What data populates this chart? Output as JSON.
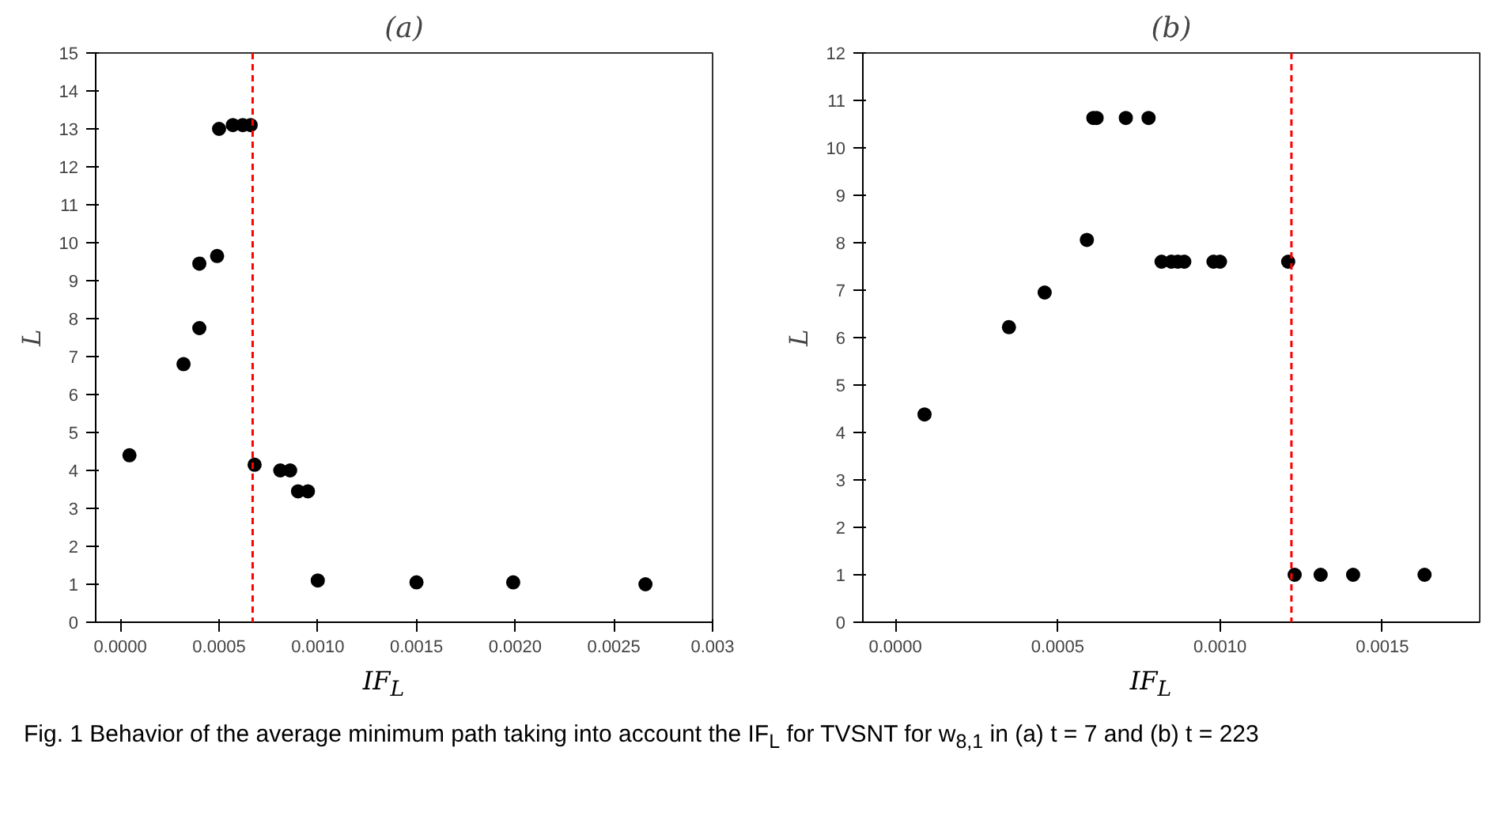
{
  "chart_data": [
    {
      "type": "scatter",
      "title": "(a)",
      "xlabel": "IF$_{L}$",
      "ylabel": "L",
      "marker": "circle",
      "grid": false,
      "x": [
        4.6e-05,
        0.00032,
        0.0004,
        0.0004,
        0.00049,
        0.0005,
        0.00057,
        0.00062,
        0.00066,
        0.00068,
        0.00081,
        0.00086,
        0.0009,
        0.00095,
        0.001,
        0.0015,
        0.00199,
        0.00266
      ],
      "series": [
        {
          "color": "#000000",
          "values": [
            4.4,
            6.8,
            7.75,
            9.45,
            9.65,
            13.0,
            13.1,
            13.1,
            13.1,
            4.15,
            4.0,
            4.0,
            3.45,
            3.45,
            1.1,
            1.05,
            1.05,
            1.0
          ]
        }
      ],
      "xlim": [
        -0.000125,
        0.003
      ],
      "xticks": [
        {
          "value": 0,
          "label": "0.0000"
        },
        {
          "value": 0.0005,
          "label": "0.0005"
        },
        {
          "value": 0.001,
          "label": "0.0010"
        },
        {
          "value": 0.0015,
          "label": "0.0015"
        },
        {
          "value": 0.002,
          "label": "0.0020"
        },
        {
          "value": 0.0025,
          "label": "0.0025"
        },
        {
          "value": 0.003,
          "label": "0.003"
        }
      ],
      "ylim": [
        0,
        15
      ],
      "yticks": [
        0,
        1,
        2,
        3,
        4,
        5,
        6,
        7,
        8,
        9,
        10,
        11,
        12,
        13,
        14,
        15
      ],
      "ref_lines": [
        {
          "axis": "x",
          "value": 0.00067,
          "color": "#ff0000",
          "line_style": "dashed"
        }
      ],
      "annotations": [
        "Fig. 1 Behavior of the average minimum path taking into account the IF$_{L}$ for TVSNT for w$_{8,1}$ in (a) t = 7 and (b) t = 223"
      ]
    },
    {
      "type": "scatter",
      "title": "(b)",
      "xlabel": "IF$_{L}$",
      "ylabel": "L",
      "marker": "circle",
      "grid": false,
      "x": [
        9e-05,
        0.00035,
        0.00046,
        0.00059,
        0.00061,
        0.00062,
        0.00071,
        0.00078,
        0.00082,
        0.00085,
        0.00087,
        0.00089,
        0.00098,
        0.001,
        0.00121,
        0.00123,
        0.00131,
        0.00141,
        0.00163
      ],
      "series": [
        {
          "color": "#000000",
          "values": [
            4.38,
            6.22,
            6.95,
            8.06,
            10.63,
            10.63,
            10.63,
            10.63,
            7.6,
            7.6,
            7.6,
            7.6,
            7.6,
            7.6,
            7.6,
            1.0,
            1.0,
            1.0,
            1.0
          ]
        }
      ],
      "xlim": [
        -0.0001,
        0.0018
      ],
      "xticks": [
        {
          "value": 0,
          "label": "0.0000"
        },
        {
          "value": 0.0005,
          "label": "0.0005"
        },
        {
          "value": 0.001,
          "label": "0.0010"
        },
        {
          "value": 0.0015,
          "label": "0.0015"
        }
      ],
      "ylim": [
        0,
        12
      ],
      "yticks": [
        0,
        1,
        2,
        3,
        4,
        5,
        6,
        7,
        8,
        9,
        10,
        11,
        12
      ],
      "ref_lines": [
        {
          "axis": "x",
          "value": 0.00122,
          "color": "#ff0000",
          "line_style": "dashed"
        }
      ]
    }
  ]
}
